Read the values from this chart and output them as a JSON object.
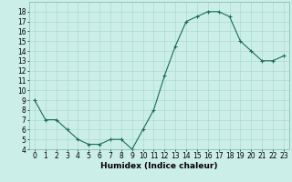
{
  "x": [
    0,
    1,
    2,
    3,
    4,
    5,
    6,
    7,
    8,
    9,
    10,
    11,
    12,
    13,
    14,
    15,
    16,
    17,
    18,
    19,
    20,
    21,
    22,
    23
  ],
  "y": [
    9,
    7,
    7,
    6,
    5,
    4.5,
    4.5,
    5,
    5,
    4,
    6,
    8,
    11.5,
    14.5,
    17,
    17.5,
    18,
    18,
    17.5,
    15,
    14,
    13,
    13,
    13.5
  ],
  "line_color": "#1a6b5a",
  "marker": "+",
  "marker_size": 3,
  "marker_color": "#1a6b5a",
  "bg_color": "#cceee8",
  "grid_color": "#aaddcc",
  "xlabel": "Humidex (Indice chaleur)",
  "xlim": [
    -0.5,
    23.5
  ],
  "ylim": [
    4,
    19
  ],
  "yticks": [
    4,
    5,
    6,
    7,
    8,
    9,
    10,
    11,
    12,
    13,
    14,
    15,
    16,
    17,
    18
  ],
  "xticks": [
    0,
    1,
    2,
    3,
    4,
    5,
    6,
    7,
    8,
    9,
    10,
    11,
    12,
    13,
    14,
    15,
    16,
    17,
    18,
    19,
    20,
    21,
    22,
    23
  ],
  "label_fontsize": 6.5,
  "tick_fontsize": 5.5
}
